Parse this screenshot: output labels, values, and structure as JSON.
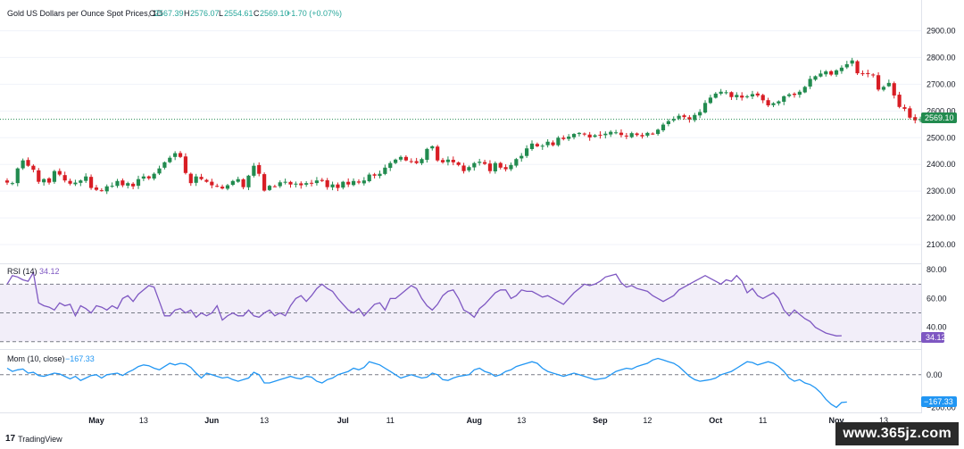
{
  "legend": {
    "title": "Gold US Dollars per Ounce Spot Prices, 1D",
    "o_label": "O",
    "o_value": "2567.39",
    "h_label": "H",
    "h_value": "2576.07",
    "l_label": "L",
    "l_value": "2554.61",
    "c_label": "C",
    "c_value": "2569.10",
    "change": "+1.70 (+0.07%)"
  },
  "rsi_legend": {
    "name": "RSI (14)",
    "value": "34.12"
  },
  "mom_legend": {
    "name": "Mom (10, close)",
    "value": "−167.33"
  },
  "badges": {
    "price": "2569.10",
    "rsi": "34.12",
    "mom": "−167.33"
  },
  "footer": {
    "brand": "TradingView",
    "logo_mark": "17"
  },
  "watermark": "www.365jz.com",
  "colors": {
    "up": "#26a69a",
    "down": "#ef5350",
    "candle_up": "#228b4f",
    "candle_down": "#d81d24",
    "rsi": "#7e57c2",
    "mom": "#2196f3"
  },
  "chart_data": [
    {
      "type": "candlestick",
      "title": "Gold US Dollars per Ounce Spot Prices, 1D",
      "x_labels": [
        "May",
        "13",
        "Jun",
        "13",
        "Jul",
        "11",
        "Aug",
        "13",
        "Sep",
        "12",
        "Oct",
        "11",
        "Nov",
        "13"
      ],
      "x_label_index": [
        17,
        26,
        39,
        49,
        64,
        73,
        89,
        98,
        113,
        122,
        135,
        144,
        158,
        167
      ],
      "y_ticks": [
        2100,
        2200,
        2300,
        2400,
        2500,
        2600,
        2700,
        2800,
        2900
      ],
      "y_tick_labels": [
        "2100.00",
        "2200.00",
        "2300.00",
        "2400.00",
        "2500.00",
        "2600.00",
        "2700.00",
        "2800.00",
        "2900.00"
      ],
      "ylim": [
        2040,
        2935
      ],
      "last_price": 2569.1,
      "series": [
        {
          "name": "Gold",
          "close": [
            2332,
            2330,
            2385,
            2415,
            2395,
            2380,
            2335,
            2345,
            2332,
            2375,
            2362,
            2340,
            2328,
            2332,
            2340,
            2355,
            2312,
            2305,
            2302,
            2318,
            2320,
            2338,
            2322,
            2330,
            2318,
            2345,
            2355,
            2348,
            2365,
            2385,
            2408,
            2425,
            2442,
            2428,
            2368,
            2330,
            2355,
            2345,
            2335,
            2322,
            2318,
            2310,
            2322,
            2338,
            2345,
            2315,
            2358,
            2395,
            2365,
            2302,
            2320,
            2318,
            2333,
            2335,
            2325,
            2328,
            2322,
            2330,
            2330,
            2340,
            2338,
            2315,
            2325,
            2312,
            2335,
            2325,
            2338,
            2332,
            2340,
            2362,
            2358,
            2365,
            2388,
            2405,
            2418,
            2428,
            2415,
            2412,
            2405,
            2420,
            2458,
            2468,
            2415,
            2408,
            2418,
            2408,
            2398,
            2375,
            2390,
            2405,
            2410,
            2402,
            2375,
            2405,
            2388,
            2382,
            2398,
            2420,
            2432,
            2460,
            2478,
            2468,
            2470,
            2485,
            2472,
            2500,
            2495,
            2504,
            2514,
            2518,
            2512,
            2501,
            2509,
            2508,
            2515,
            2522,
            2520,
            2510,
            2505,
            2517,
            2510,
            2505,
            2518,
            2515,
            2530,
            2549,
            2562,
            2570,
            2582,
            2577,
            2568,
            2585,
            2596,
            2630,
            2650,
            2665,
            2672,
            2670,
            2652,
            2660,
            2650,
            2655,
            2663,
            2658,
            2640,
            2621,
            2629,
            2636,
            2655,
            2662,
            2660,
            2672,
            2690,
            2720,
            2730,
            2740,
            2748,
            2736,
            2752,
            2762,
            2775,
            2789,
            2741,
            2740,
            2738,
            2735,
            2680,
            2690,
            2705,
            2658,
            2615,
            2608,
            2575,
            2565,
            2569
          ]
        }
      ]
    },
    {
      "type": "line",
      "title": "RSI (14)",
      "value_label": "34.12",
      "ylim": [
        28,
        82
      ],
      "y_ticks": [
        40,
        60,
        80
      ],
      "y_tick_labels": [
        "40.00",
        "60.00",
        "80.00"
      ],
      "band": [
        30,
        70
      ],
      "midline": 50,
      "series": [
        {
          "name": "RSI (14)",
          "values": [
            70,
            76,
            75,
            73,
            72,
            78,
            57,
            55,
            54,
            52,
            57,
            55,
            56,
            48,
            55,
            53,
            50,
            55,
            54,
            52,
            55,
            53,
            60,
            62,
            58,
            63,
            66,
            69,
            68,
            58,
            48,
            48,
            52,
            53,
            50,
            52,
            47,
            50,
            48,
            50,
            55,
            45,
            48,
            50,
            48,
            48,
            52,
            48,
            47,
            50,
            52,
            48,
            50,
            48,
            55,
            60,
            62,
            58,
            62,
            67,
            70,
            67,
            65,
            60,
            56,
            52,
            50,
            53,
            48,
            52,
            56,
            57,
            52,
            60,
            60,
            63,
            66,
            69,
            67,
            60,
            55,
            52,
            56,
            62,
            65,
            66,
            60,
            52,
            50,
            47,
            53,
            56,
            60,
            64,
            66,
            66,
            60,
            62,
            66,
            65,
            65,
            63,
            61,
            62,
            60,
            58,
            56,
            60,
            64,
            67,
            70,
            69,
            70,
            72,
            75,
            76,
            77,
            71,
            68,
            69,
            67,
            66,
            65,
            62,
            60,
            58,
            60,
            62,
            66,
            68,
            70,
            72,
            74,
            76,
            74,
            72,
            70,
            73,
            72,
            76,
            72,
            64,
            67,
            62,
            60,
            62,
            64,
            60,
            52,
            48,
            52,
            49,
            46,
            44,
            40,
            38,
            36,
            35,
            34,
            34.12
          ]
        }
      ]
    },
    {
      "type": "line",
      "title": "Mom (10, close)",
      "value_label": "−167.33",
      "ylim": [
        -225,
        130
      ],
      "y_ticks": [
        0
      ],
      "y_tick_labels": [
        "0.00"
      ],
      "partial_tick_label": "−200.00",
      "zero_line": 0,
      "series": [
        {
          "name": "Mom (10, close)",
          "values": [
            40,
            20,
            30,
            35,
            10,
            15,
            -5,
            -10,
            0,
            10,
            5,
            -10,
            -25,
            -10,
            -35,
            -20,
            -5,
            0,
            -20,
            0,
            5,
            10,
            -5,
            15,
            30,
            50,
            60,
            55,
            40,
            30,
            50,
            70,
            60,
            70,
            65,
            45,
            10,
            -20,
            10,
            0,
            -10,
            -20,
            -15,
            -30,
            -40,
            -30,
            -20,
            15,
            0,
            -50,
            -50,
            -40,
            -30,
            -20,
            -10,
            -20,
            -25,
            -10,
            -15,
            -40,
            -50,
            -30,
            -20,
            0,
            10,
            20,
            40,
            30,
            45,
            80,
            70,
            60,
            40,
            20,
            0,
            -20,
            -10,
            0,
            -10,
            -20,
            -15,
            10,
            0,
            -30,
            -35,
            -20,
            -10,
            -5,
            0,
            30,
            40,
            20,
            10,
            -10,
            0,
            20,
            30,
            50,
            60,
            70,
            80,
            70,
            40,
            20,
            10,
            0,
            -10,
            0,
            10,
            0,
            -10,
            -20,
            -30,
            -25,
            -20,
            0,
            20,
            30,
            40,
            35,
            50,
            60,
            70,
            90,
            100,
            90,
            80,
            70,
            50,
            20,
            -10,
            -30,
            -40,
            -35,
            -30,
            -20,
            0,
            10,
            20,
            40,
            60,
            80,
            75,
            60,
            70,
            80,
            70,
            50,
            20,
            -20,
            -40,
            -30,
            -50,
            -60,
            -80,
            -110,
            -150,
            -180,
            -200,
            -170,
            -167.33
          ]
        }
      ]
    }
  ]
}
